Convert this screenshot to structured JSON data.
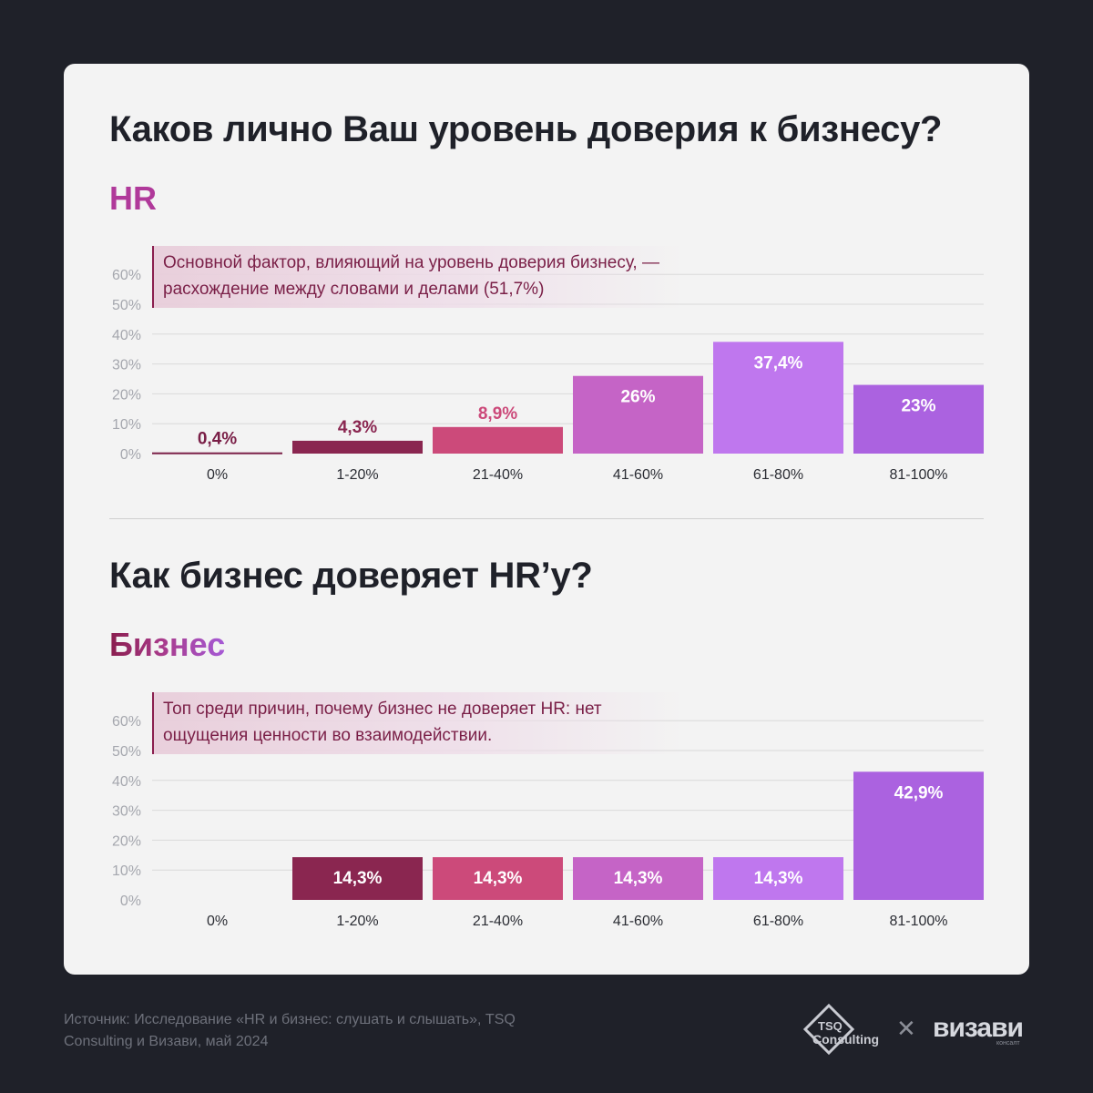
{
  "section1": {
    "title": "Каков лично Ваш уровень доверия к бизнесу?",
    "subtitle": "HR",
    "note": "Основной фактор, влияющий на уровень доверия бизнесу, — расхождение между словами и делами (51,7%)"
  },
  "section2": {
    "title": "Как бизнес доверяет HR’у?",
    "subtitle": "Бизнес",
    "note": "Топ среди причин, почему бизнес не доверяет HR: нет ощущения ценности во взаимодействии."
  },
  "source": "Источник: Исследование «HR и бизнес: слушать и слышать», TSQ Consulting и Визави, май 2024",
  "logos": {
    "tsq": "TSQ Consulting",
    "tsq_lines": [
      "TSQ",
      "Consulting"
    ],
    "cross": "✕",
    "vizavi": "визави",
    "vizavi_sub": "консалт"
  },
  "colors": {
    "background": "#1f2129",
    "card": "#f3f3f3",
    "bar_colors": [
      "#7a1f47",
      "#8a2650",
      "#cc4a7a",
      "#c564c6",
      "#bf77ee",
      "#ab62e0"
    ]
  },
  "chart_data": [
    {
      "type": "bar",
      "categories": [
        "0%",
        "1-20%",
        "21-40%",
        "41-60%",
        "61-80%",
        "81-100%"
      ],
      "values": [
        0.4,
        4.3,
        8.9,
        26,
        37.4,
        23
      ],
      "labels": [
        "0,4%",
        "4,3%",
        "8,9%",
        "26%",
        "37,4%",
        "23%"
      ],
      "yticks": [
        "0%",
        "10%",
        "20%",
        "30%",
        "40%",
        "50%",
        "60%"
      ],
      "ylim": [
        0,
        60
      ],
      "grid": true
    },
    {
      "type": "bar",
      "categories": [
        "0%",
        "1-20%",
        "21-40%",
        "41-60%",
        "61-80%",
        "81-100%"
      ],
      "values": [
        0,
        14.3,
        14.3,
        14.3,
        14.3,
        42.9
      ],
      "labels": [
        "",
        "14,3%",
        "14,3%",
        "14,3%",
        "14,3%",
        "42,9%"
      ],
      "yticks": [
        "0%",
        "10%",
        "20%",
        "30%",
        "40%",
        "50%",
        "60%"
      ],
      "ylim": [
        0,
        60
      ],
      "grid": true
    }
  ]
}
